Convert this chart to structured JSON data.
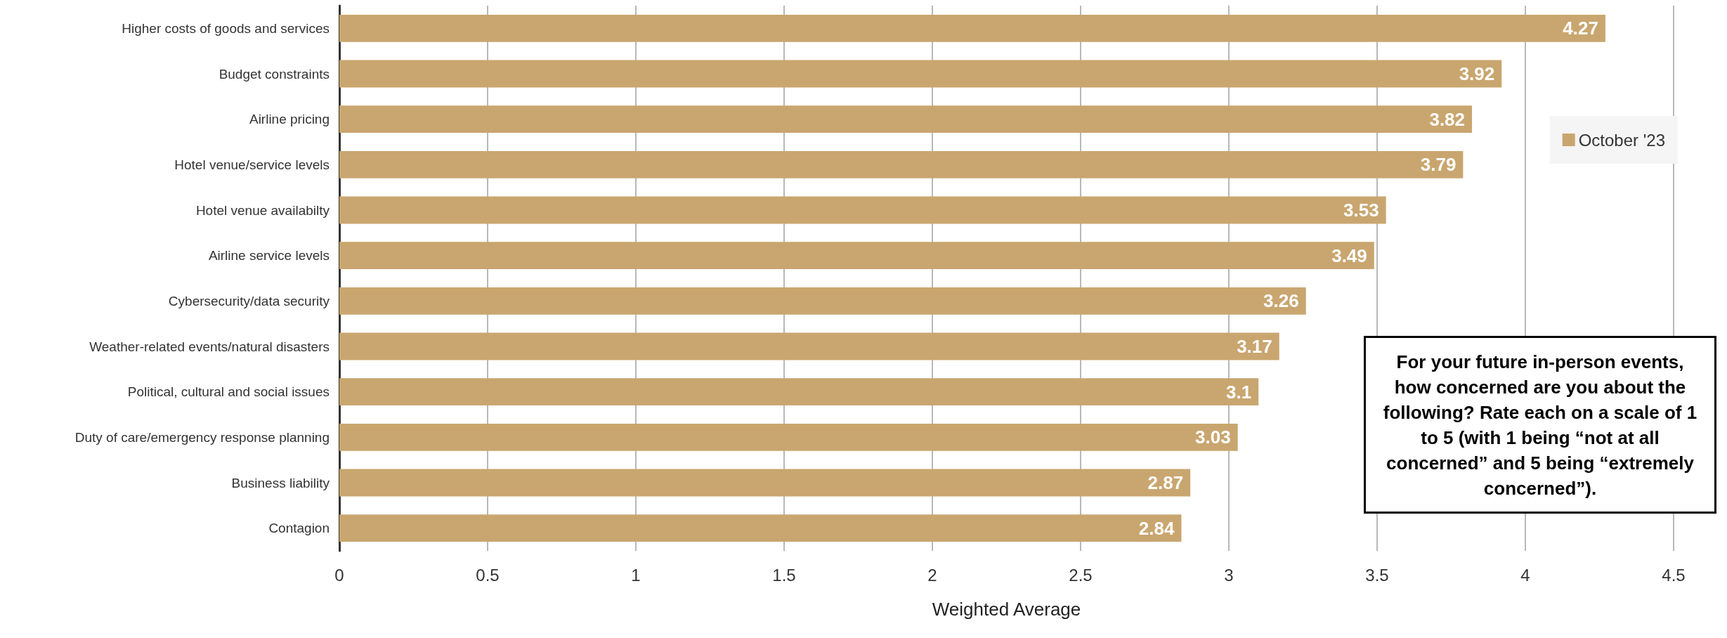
{
  "chart_data": {
    "type": "bar",
    "orientation": "horizontal",
    "xlabel": "Weighted Average",
    "categories": [
      "Higher costs of goods and services",
      "Budget constraints",
      "Airline pricing",
      "Hotel venue/service levels",
      "Hotel venue availabilty",
      "Airline service levels",
      "Cybersecurity/data security",
      "Weather-related events/natural disasters",
      "Political, cultural and social issues",
      "Duty of care/emergency response planning",
      "Business liability",
      "Contagion"
    ],
    "series": [
      {
        "name": "October '23",
        "color": "#c9a66f",
        "values": [
          4.27,
          3.92,
          3.82,
          3.79,
          3.53,
          3.49,
          3.26,
          3.17,
          3.1,
          3.03,
          2.87,
          2.84
        ]
      }
    ],
    "xlim": [
      0,
      4.5
    ],
    "xticks": [
      0,
      0.5,
      1,
      1.5,
      2,
      2.5,
      3,
      3.5,
      4,
      4.5
    ],
    "data_labels": true,
    "grid": "x",
    "legend": "top right",
    "annotations": [
      "For your future in-person events, how concerned are you about the following? Rate each on a scale of 1 to 5 (with 1 being “not at all concerned” and 5 being “extremely concerned”)."
    ]
  }
}
